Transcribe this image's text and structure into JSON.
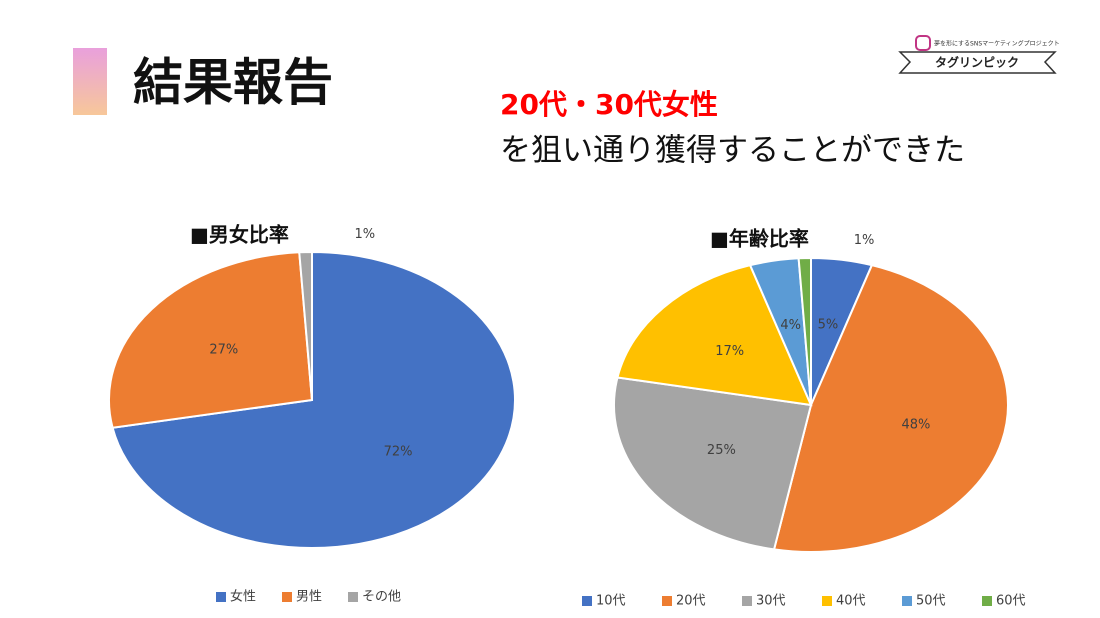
{
  "slide": {
    "title": "結果報告",
    "headline_highlight": "20代・30代女性",
    "headline": "を狙い通り獲得することができた",
    "logo_caption": "夢を形にするSNSマーケティングプロジェクト",
    "logo_name": "タグリンピック"
  },
  "chart_data": [
    {
      "type": "pie",
      "title": "■男女比率",
      "categories": [
        "女性",
        "男性",
        "その他"
      ],
      "values": [
        72,
        27,
        1
      ],
      "value_labels": [
        "72%",
        "27%",
        "1%"
      ],
      "colors": [
        "#4472c4",
        "#ed7d31",
        "#a5a5a5"
      ],
      "legend": "bottom"
    },
    {
      "type": "pie",
      "title": "■年齢比率",
      "categories": [
        "10代",
        "20代",
        "30代",
        "40代",
        "50代",
        "60代"
      ],
      "values": [
        5,
        48,
        25,
        17,
        4,
        1
      ],
      "value_labels": [
        "5%",
        "48%",
        "25%",
        "17%",
        "4%",
        "1%"
      ],
      "colors": [
        "#4472c4",
        "#ed7d31",
        "#a5a5a5",
        "#ffc000",
        "#5b9bd5",
        "#70ad47"
      ],
      "legend": "bottom"
    }
  ]
}
